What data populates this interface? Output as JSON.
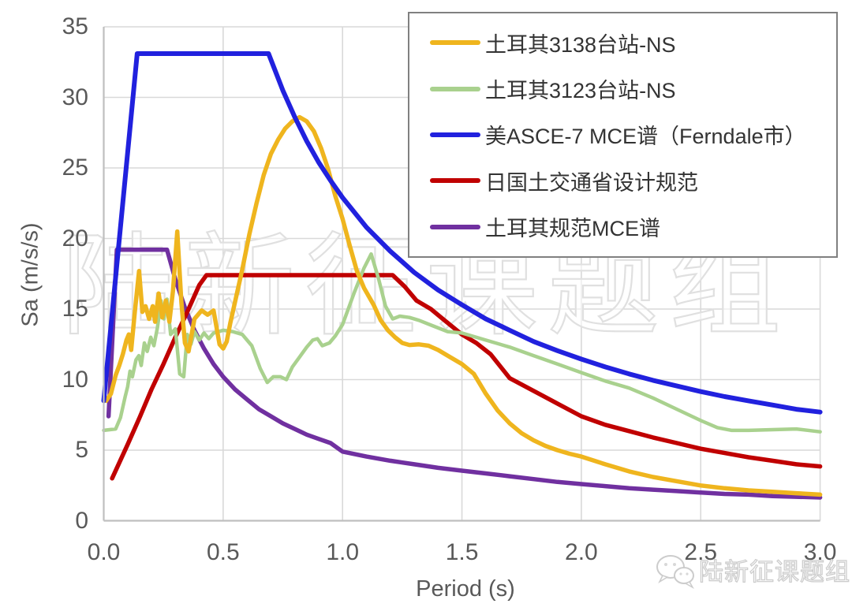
{
  "watermark": {
    "text": "陆新征课题组"
  },
  "footer_badge": {
    "icon": "wechat-icon",
    "text": "陆新征课题组"
  },
  "chart_data": {
    "type": "line",
    "title": "",
    "xlabel": "Period (s)",
    "ylabel": "Sa (m/s/s)",
    "xlim": [
      0,
      3.0
    ],
    "ylim": [
      0,
      35
    ],
    "grid": true,
    "legend_position": "top-right",
    "x_ticks": [
      0,
      0.5,
      1.0,
      1.5,
      2.0,
      2.5,
      3.0
    ],
    "x_tick_labels": [
      "0.0",
      "0.5",
      "1.0",
      "1.5",
      "2.0",
      "2.5",
      "3.0"
    ],
    "y_ticks": [
      0,
      5,
      10,
      15,
      20,
      25,
      30,
      35
    ],
    "y_tick_labels": [
      "0",
      "5",
      "10",
      "15",
      "20",
      "25",
      "30",
      "35"
    ],
    "series": [
      {
        "name": "土耳其3138台站-NS",
        "color": "#EFB51E",
        "points": [
          [
            0.01,
            8.5
          ],
          [
            0.03,
            9.0
          ],
          [
            0.05,
            10.3
          ],
          [
            0.065,
            11.0
          ],
          [
            0.08,
            11.8
          ],
          [
            0.095,
            12.8
          ],
          [
            0.105,
            13.2
          ],
          [
            0.115,
            12.1
          ],
          [
            0.13,
            14.8
          ],
          [
            0.148,
            17.7
          ],
          [
            0.162,
            14.8
          ],
          [
            0.175,
            15.2
          ],
          [
            0.19,
            14.3
          ],
          [
            0.205,
            15.2
          ],
          [
            0.215,
            14.1
          ],
          [
            0.23,
            16.1
          ],
          [
            0.245,
            14.4
          ],
          [
            0.26,
            15.6
          ],
          [
            0.275,
            14.1
          ],
          [
            0.29,
            16.3
          ],
          [
            0.308,
            20.5
          ],
          [
            0.325,
            15.5
          ],
          [
            0.34,
            12.6
          ],
          [
            0.355,
            12.0
          ],
          [
            0.38,
            14.3
          ],
          [
            0.41,
            14.9
          ],
          [
            0.435,
            14.6
          ],
          [
            0.46,
            14.9
          ],
          [
            0.485,
            12.5
          ],
          [
            0.5,
            12.2
          ],
          [
            0.515,
            12.7
          ],
          [
            0.53,
            14.0
          ],
          [
            0.555,
            15.9
          ],
          [
            0.58,
            17.8
          ],
          [
            0.61,
            20.3
          ],
          [
            0.64,
            22.5
          ],
          [
            0.67,
            24.5
          ],
          [
            0.7,
            26.0
          ],
          [
            0.73,
            27.0
          ],
          [
            0.76,
            27.8
          ],
          [
            0.79,
            28.3
          ],
          [
            0.82,
            28.6
          ],
          [
            0.85,
            28.3
          ],
          [
            0.88,
            27.6
          ],
          [
            0.91,
            26.4
          ],
          [
            0.94,
            24.9
          ],
          [
            0.97,
            23.0
          ],
          [
            1.0,
            21.4
          ],
          [
            1.03,
            19.5
          ],
          [
            1.06,
            17.7
          ],
          [
            1.09,
            16.5
          ],
          [
            1.13,
            15.3
          ],
          [
            1.16,
            14.2
          ],
          [
            1.19,
            13.5
          ],
          [
            1.22,
            13.0
          ],
          [
            1.25,
            12.6
          ],
          [
            1.28,
            12.45
          ],
          [
            1.32,
            12.5
          ],
          [
            1.36,
            12.4
          ],
          [
            1.4,
            12.1
          ],
          [
            1.45,
            11.6
          ],
          [
            1.5,
            11.1
          ],
          [
            1.55,
            10.4
          ],
          [
            1.6,
            9.0
          ],
          [
            1.65,
            7.8
          ],
          [
            1.7,
            6.9
          ],
          [
            1.75,
            6.2
          ],
          [
            1.8,
            5.7
          ],
          [
            1.85,
            5.3
          ],
          [
            1.9,
            5.0
          ],
          [
            1.95,
            4.75
          ],
          [
            2.0,
            4.55
          ],
          [
            2.1,
            4.0
          ],
          [
            2.2,
            3.5
          ],
          [
            2.3,
            3.1
          ],
          [
            2.4,
            2.8
          ],
          [
            2.5,
            2.5
          ],
          [
            2.6,
            2.3
          ],
          [
            2.7,
            2.15
          ],
          [
            2.8,
            2.05
          ],
          [
            2.9,
            1.95
          ],
          [
            3.0,
            1.85
          ]
        ]
      },
      {
        "name": "土耳其3123台站-NS",
        "color": "#A9D18E",
        "points": [
          [
            0.0,
            6.4
          ],
          [
            0.05,
            6.5
          ],
          [
            0.07,
            7.3
          ],
          [
            0.09,
            8.8
          ],
          [
            0.1,
            9.5
          ],
          [
            0.11,
            10.6
          ],
          [
            0.12,
            10.2
          ],
          [
            0.135,
            11.4
          ],
          [
            0.147,
            11.7
          ],
          [
            0.157,
            11.0
          ],
          [
            0.17,
            12.6
          ],
          [
            0.182,
            12.0
          ],
          [
            0.197,
            13.0
          ],
          [
            0.21,
            12.4
          ],
          [
            0.225,
            13.7
          ],
          [
            0.24,
            15.6
          ],
          [
            0.252,
            14.3
          ],
          [
            0.265,
            15.7
          ],
          [
            0.28,
            13.2
          ],
          [
            0.3,
            13.6
          ],
          [
            0.318,
            10.4
          ],
          [
            0.335,
            10.2
          ],
          [
            0.35,
            13.2
          ],
          [
            0.365,
            12.5
          ],
          [
            0.38,
            13.4
          ],
          [
            0.4,
            12.8
          ],
          [
            0.42,
            13.3
          ],
          [
            0.44,
            12.9
          ],
          [
            0.46,
            13.3
          ],
          [
            0.5,
            13.5
          ],
          [
            0.54,
            13.4
          ],
          [
            0.58,
            13.2
          ],
          [
            0.62,
            12.4
          ],
          [
            0.655,
            10.8
          ],
          [
            0.685,
            9.8
          ],
          [
            0.71,
            10.2
          ],
          [
            0.74,
            10.2
          ],
          [
            0.765,
            10.0
          ],
          [
            0.79,
            10.9
          ],
          [
            0.82,
            11.6
          ],
          [
            0.85,
            12.3
          ],
          [
            0.875,
            12.8
          ],
          [
            0.895,
            12.9
          ],
          [
            0.915,
            12.4
          ],
          [
            0.945,
            12.6
          ],
          [
            0.97,
            13.1
          ],
          [
            1.0,
            13.9
          ],
          [
            1.05,
            16.2
          ],
          [
            1.09,
            17.9
          ],
          [
            1.12,
            18.9
          ],
          [
            1.15,
            17.2
          ],
          [
            1.18,
            15.2
          ],
          [
            1.21,
            14.3
          ],
          [
            1.24,
            14.5
          ],
          [
            1.28,
            14.4
          ],
          [
            1.32,
            14.2
          ],
          [
            1.38,
            13.8
          ],
          [
            1.44,
            13.4
          ],
          [
            1.5,
            13.3
          ],
          [
            1.6,
            12.8
          ],
          [
            1.7,
            12.3
          ],
          [
            1.8,
            11.7
          ],
          [
            1.9,
            11.1
          ],
          [
            2.0,
            10.5
          ],
          [
            2.1,
            9.9
          ],
          [
            2.2,
            9.4
          ],
          [
            2.3,
            8.7
          ],
          [
            2.4,
            7.9
          ],
          [
            2.5,
            7.1
          ],
          [
            2.57,
            6.6
          ],
          [
            2.63,
            6.4
          ],
          [
            2.7,
            6.4
          ],
          [
            2.8,
            6.45
          ],
          [
            2.9,
            6.5
          ],
          [
            3.0,
            6.3
          ]
        ]
      },
      {
        "name": "美ASCE-7 MCE谱（Ferndale市）",
        "color": "#2121DE",
        "points": [
          [
            0.0,
            8.5
          ],
          [
            0.14,
            33.1
          ],
          [
            0.69,
            33.1
          ],
          [
            0.75,
            30.5
          ],
          [
            0.8,
            28.6
          ],
          [
            0.85,
            26.9
          ],
          [
            0.9,
            25.4
          ],
          [
            0.95,
            24.1
          ],
          [
            1.0,
            22.9
          ],
          [
            1.1,
            20.8
          ],
          [
            1.2,
            19.1
          ],
          [
            1.3,
            17.6
          ],
          [
            1.4,
            16.35
          ],
          [
            1.5,
            15.3
          ],
          [
            1.6,
            14.3
          ],
          [
            1.7,
            13.5
          ],
          [
            1.8,
            12.7
          ],
          [
            1.9,
            12.05
          ],
          [
            2.0,
            11.45
          ],
          [
            2.1,
            10.9
          ],
          [
            2.2,
            10.4
          ],
          [
            2.3,
            9.95
          ],
          [
            2.4,
            9.55
          ],
          [
            2.5,
            9.15
          ],
          [
            2.6,
            8.8
          ],
          [
            2.7,
            8.5
          ],
          [
            2.8,
            8.2
          ],
          [
            2.9,
            7.9
          ],
          [
            3.0,
            7.7
          ]
        ]
      },
      {
        "name": "日国土交通省设计规范",
        "color": "#C00000",
        "points": [
          [
            0.035,
            3.0
          ],
          [
            0.1,
            5.4
          ],
          [
            0.15,
            7.3
          ],
          [
            0.2,
            9.3
          ],
          [
            0.25,
            11.1
          ],
          [
            0.3,
            13.0
          ],
          [
            0.35,
            14.8
          ],
          [
            0.4,
            16.7
          ],
          [
            0.43,
            17.4
          ],
          [
            1.21,
            17.4
          ],
          [
            1.26,
            16.6
          ],
          [
            1.31,
            15.6
          ],
          [
            1.37,
            15.0
          ],
          [
            1.42,
            14.3
          ],
          [
            1.5,
            13.2
          ],
          [
            1.56,
            12.6
          ],
          [
            1.62,
            11.8
          ],
          [
            1.7,
            10.1
          ],
          [
            1.8,
            9.2
          ],
          [
            1.9,
            8.3
          ],
          [
            2.0,
            7.4
          ],
          [
            2.1,
            6.8
          ],
          [
            2.2,
            6.35
          ],
          [
            2.3,
            5.9
          ],
          [
            2.4,
            5.5
          ],
          [
            2.5,
            5.1
          ],
          [
            2.6,
            4.8
          ],
          [
            2.7,
            4.5
          ],
          [
            2.8,
            4.25
          ],
          [
            2.9,
            4.0
          ],
          [
            3.0,
            3.85
          ]
        ]
      },
      {
        "name": "土耳其规范MCE谱",
        "color": "#7030A0",
        "points": [
          [
            0.02,
            7.4
          ],
          [
            0.055,
            19.2
          ],
          [
            0.265,
            19.2
          ],
          [
            0.3,
            17.1
          ],
          [
            0.34,
            15.1
          ],
          [
            0.38,
            13.5
          ],
          [
            0.42,
            12.2
          ],
          [
            0.46,
            11.1
          ],
          [
            0.5,
            10.2
          ],
          [
            0.55,
            9.3
          ],
          [
            0.6,
            8.6
          ],
          [
            0.65,
            7.9
          ],
          [
            0.7,
            7.4
          ],
          [
            0.75,
            6.9
          ],
          [
            0.8,
            6.5
          ],
          [
            0.85,
            6.1
          ],
          [
            0.9,
            5.8
          ],
          [
            0.95,
            5.5
          ],
          [
            1.0,
            4.9
          ],
          [
            1.1,
            4.55
          ],
          [
            1.2,
            4.25
          ],
          [
            1.3,
            4.0
          ],
          [
            1.4,
            3.75
          ],
          [
            1.5,
            3.55
          ],
          [
            1.6,
            3.35
          ],
          [
            1.7,
            3.15
          ],
          [
            1.8,
            2.95
          ],
          [
            1.9,
            2.75
          ],
          [
            2.0,
            2.6
          ],
          [
            2.1,
            2.45
          ],
          [
            2.2,
            2.3
          ],
          [
            2.3,
            2.2
          ],
          [
            2.4,
            2.1
          ],
          [
            2.5,
            2.0
          ],
          [
            2.6,
            1.9
          ],
          [
            2.7,
            1.85
          ],
          [
            2.8,
            1.75
          ],
          [
            2.9,
            1.7
          ],
          [
            3.0,
            1.65
          ]
        ]
      }
    ]
  }
}
